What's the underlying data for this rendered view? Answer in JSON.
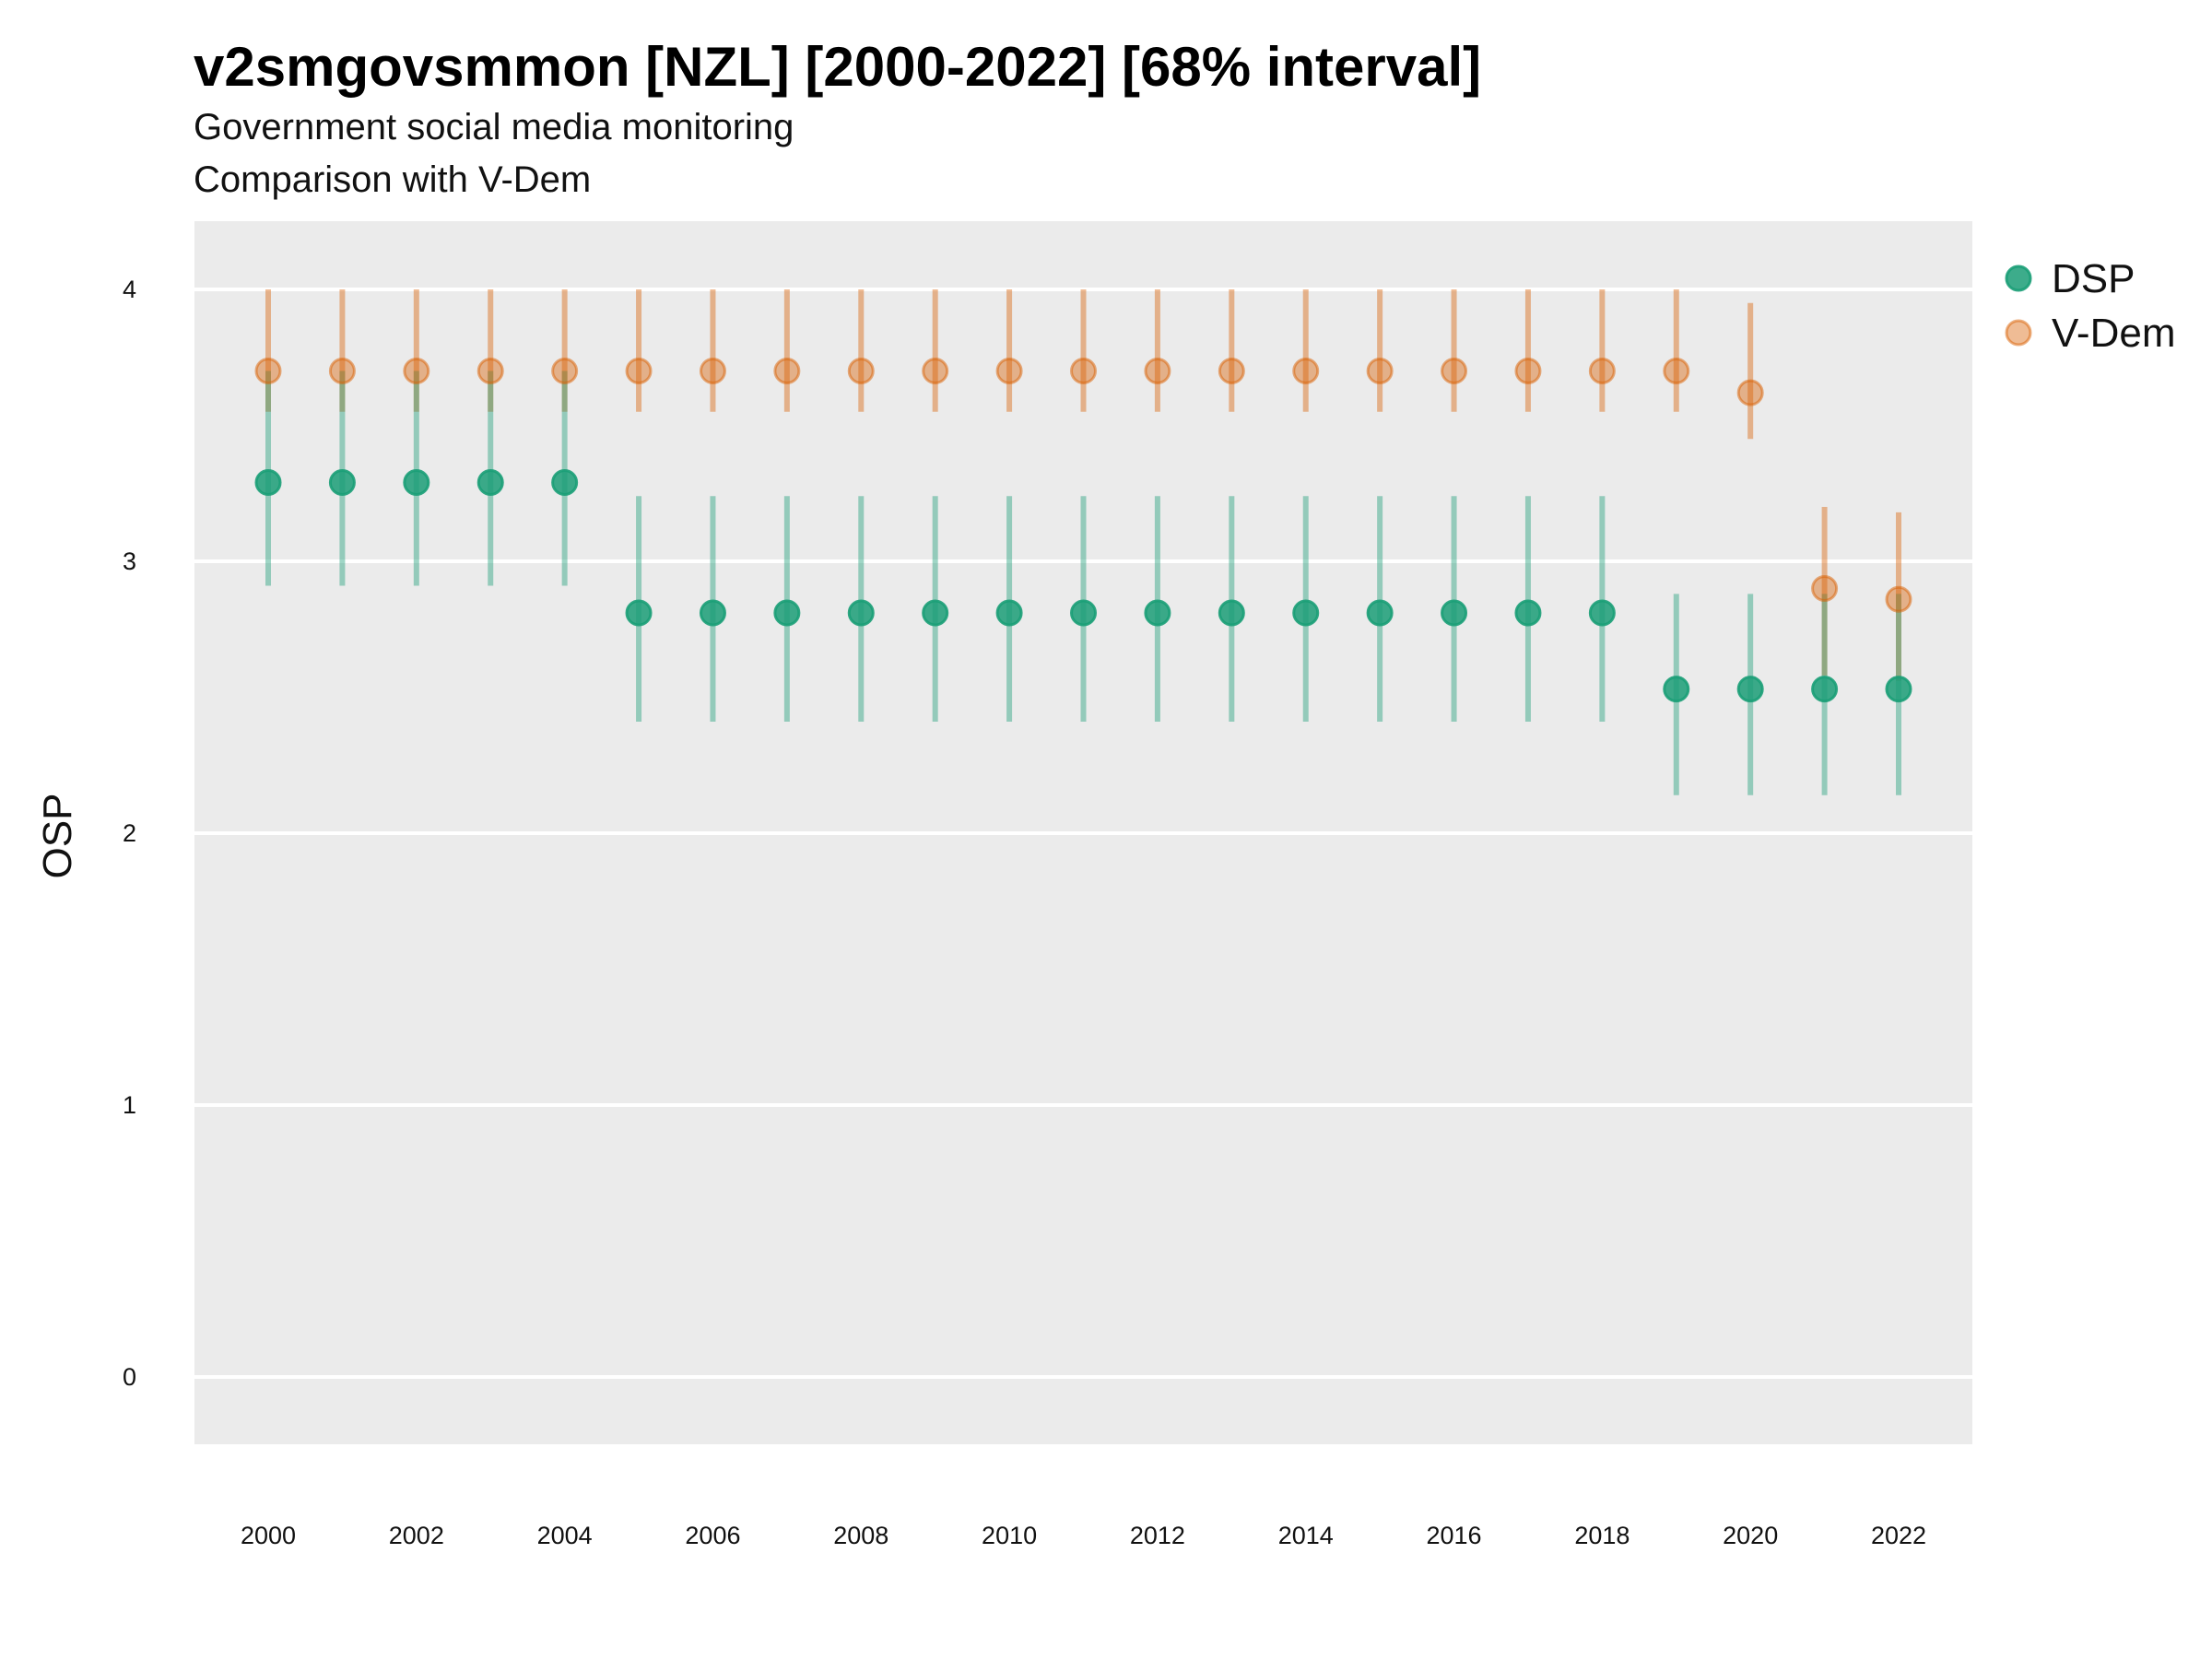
{
  "header": {
    "title": "v2smgovsmmon [NZL] [2000-2022] [68% interval]",
    "subtitle": "Government social media monitoring",
    "caption": "Comparison with V-Dem"
  },
  "chart_data": {
    "type": "scatter",
    "title": "v2smgovsmmon [NZL] [2000-2022] [68% interval]",
    "subtitle": "Government social media monitoring",
    "caption": "Comparison with V-Dem",
    "xlabel": "",
    "ylabel": "OSP",
    "xlim": [
      1999,
      2023
    ],
    "ylim": [
      -0.25,
      4.25
    ],
    "x_ticks": [
      2000,
      2002,
      2004,
      2006,
      2008,
      2010,
      2012,
      2014,
      2016,
      2018,
      2020,
      2022
    ],
    "y_ticks": [
      0,
      1,
      2,
      3,
      4
    ],
    "grid": "horizontal major",
    "legend_position": "right",
    "series": [
      {
        "name": "DSP",
        "color": "#1b9e77",
        "x": [
          2000,
          2001,
          2002,
          2003,
          2004,
          2005,
          2006,
          2007,
          2008,
          2009,
          2010,
          2011,
          2012,
          2013,
          2014,
          2015,
          2016,
          2017,
          2018,
          2019,
          2020,
          2021,
          2022
        ],
        "values": [
          3.29,
          3.29,
          3.29,
          3.29,
          3.29,
          2.81,
          2.81,
          2.81,
          2.81,
          2.81,
          2.81,
          2.81,
          2.81,
          2.81,
          2.81,
          2.81,
          2.81,
          2.81,
          2.81,
          2.53,
          2.53,
          2.53,
          2.53
        ],
        "lower": [
          2.91,
          2.91,
          2.91,
          2.91,
          2.91,
          2.41,
          2.41,
          2.41,
          2.41,
          2.41,
          2.41,
          2.41,
          2.41,
          2.41,
          2.41,
          2.41,
          2.41,
          2.41,
          2.41,
          2.14,
          2.14,
          2.14,
          2.14
        ],
        "upper": [
          3.7,
          3.7,
          3.7,
          3.7,
          3.7,
          3.24,
          3.24,
          3.24,
          3.24,
          3.24,
          3.24,
          3.24,
          3.24,
          3.24,
          3.24,
          3.24,
          3.24,
          3.24,
          3.24,
          2.88,
          2.88,
          2.88,
          2.88
        ]
      },
      {
        "name": "V-Dem",
        "color": "#d95f02",
        "x": [
          2000,
          2001,
          2002,
          2003,
          2004,
          2005,
          2006,
          2007,
          2008,
          2009,
          2010,
          2011,
          2012,
          2013,
          2014,
          2015,
          2016,
          2017,
          2018,
          2019,
          2020,
          2021,
          2022
        ],
        "values": [
          3.7,
          3.7,
          3.7,
          3.7,
          3.7,
          3.7,
          3.7,
          3.7,
          3.7,
          3.7,
          3.7,
          3.7,
          3.7,
          3.7,
          3.7,
          3.7,
          3.7,
          3.7,
          3.7,
          3.7,
          3.62,
          2.9,
          2.86
        ],
        "lower": [
          3.55,
          3.55,
          3.55,
          3.55,
          3.55,
          3.55,
          3.55,
          3.55,
          3.55,
          3.55,
          3.55,
          3.55,
          3.55,
          3.55,
          3.55,
          3.55,
          3.55,
          3.55,
          3.55,
          3.55,
          3.45,
          2.58,
          2.56
        ],
        "upper": [
          4.0,
          4.0,
          4.0,
          4.0,
          4.0,
          4.0,
          4.0,
          4.0,
          4.0,
          4.0,
          4.0,
          4.0,
          4.0,
          4.0,
          4.0,
          4.0,
          4.0,
          4.0,
          4.0,
          4.0,
          3.95,
          3.2,
          3.18
        ]
      }
    ]
  }
}
